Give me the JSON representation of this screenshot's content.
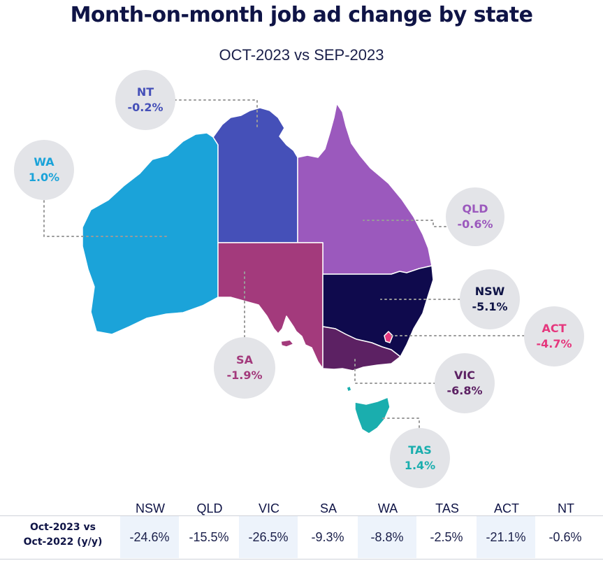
{
  "title": "Month-on-month job ad change by state",
  "subtitle": "OCT-2023 vs SEP-2023",
  "states": [
    {
      "code": "WA",
      "value": "1.0%",
      "color": "#1ba3d9",
      "label_color": "#1ba3d9"
    },
    {
      "code": "NT",
      "value": "-0.2%",
      "color": "#4550b8",
      "label_color": "#4550b8"
    },
    {
      "code": "QLD",
      "value": "-0.6%",
      "color": "#9b59bd",
      "label_color": "#9b59bd"
    },
    {
      "code": "SA",
      "value": "-1.9%",
      "color": "#a33a7c",
      "label_color": "#a33a7c"
    },
    {
      "code": "NSW",
      "value": "-5.1%",
      "color": "#0f0a4d",
      "label_color": "#0f1446"
    },
    {
      "code": "ACT",
      "value": "-4.7%",
      "color": "#e5377d",
      "label_color": "#e5377d"
    },
    {
      "code": "VIC",
      "value": "-6.8%",
      "color": "#5c2163",
      "label_color": "#5c2163"
    },
    {
      "code": "TAS",
      "value": "1.4%",
      "color": "#1aaeae",
      "label_color": "#1aaeae"
    }
  ],
  "table": {
    "row_label_line1": "Oct-2023 vs",
    "row_label_line2": "Oct-2022 (y/y)",
    "columns": [
      "NSW",
      "QLD",
      "VIC",
      "SA",
      "WA",
      "TAS",
      "ACT",
      "NT"
    ],
    "values": [
      "-24.6%",
      "-15.5%",
      "-26.5%",
      "-9.3%",
      "-8.8%",
      "-2.5%",
      "-21.1%",
      "-0.6%"
    ]
  }
}
